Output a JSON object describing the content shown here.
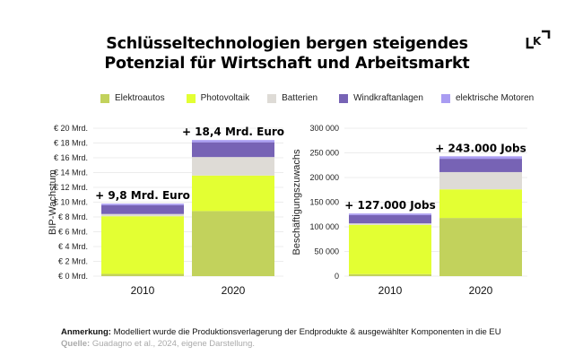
{
  "title_line1": "Schlüsseltechnologien bergen steigendes",
  "title_line2": "Potenzial für Wirtschaft und Arbeitsmarkt",
  "logo": "lk-bracket-logo",
  "legend": [
    {
      "label": "Elektroautos",
      "color": "#c2d25c"
    },
    {
      "label": "Photovoltaik",
      "color": "#e3ff33"
    },
    {
      "label": "Batterien",
      "color": "#dedbd6"
    },
    {
      "label": "Windkraftanlagen",
      "color": "#7763b5"
    },
    {
      "label": "elektrische Motoren",
      "color": "#a99cf2"
    }
  ],
  "note": {
    "label": "Anmerkung:",
    "text": "Modelliert wurde die Produktionsverlagerung der Endprodukte & ausgewählter Komponenten in die EU",
    "source_label": "Quelle:",
    "source_text": "Guadagno et al., 2024, eigene Darstellung."
  },
  "chart_data": [
    {
      "type": "bar",
      "stacked": true,
      "title": "",
      "xlabel": "",
      "ylabel": "BIP-Wachstum",
      "categories": [
        "2010",
        "2020"
      ],
      "ylim": [
        0,
        20
      ],
      "yticks": [
        0,
        2,
        4,
        6,
        8,
        10,
        12,
        14,
        16,
        18,
        20
      ],
      "ytick_labels": [
        "€ 0 Mrd.",
        "€ 2 Mrd.",
        "€ 4 Mrd.",
        "€ 6 Mrd.",
        "€ 8 Mrd.",
        "€ 10 Mrd.",
        "€ 12 Mrd.",
        "€ 14 Mrd.",
        "€ 16 Mrd.",
        "€ 18 Mrd.",
        "€ 20 Mrd."
      ],
      "grid": true,
      "legend": "top",
      "series": [
        {
          "name": "Elektroautos",
          "values": [
            0.3,
            8.8
          ]
        },
        {
          "name": "Photovoltaik",
          "values": [
            7.8,
            4.8
          ]
        },
        {
          "name": "Batterien",
          "values": [
            0.3,
            2.5
          ]
        },
        {
          "name": "Windkraftanlagen",
          "values": [
            1.2,
            2.0
          ]
        },
        {
          "name": "elektrische Motoren",
          "values": [
            0.2,
            0.3
          ]
        }
      ],
      "totals": [
        9.8,
        18.4
      ],
      "total_labels": [
        "+ 9,8 Mrd. Euro",
        "+ 18,4 Mrd. Euro"
      ]
    },
    {
      "type": "bar",
      "stacked": true,
      "title": "",
      "xlabel": "",
      "ylabel": "Beschäftigungszuwachs",
      "categories": [
        "2010",
        "2020"
      ],
      "ylim": [
        0,
        300000
      ],
      "yticks": [
        0,
        50000,
        100000,
        150000,
        200000,
        250000,
        300000
      ],
      "ytick_labels": [
        "0",
        "50 000",
        "100 000",
        "150 000",
        "200 000",
        "250 000",
        "300 000"
      ],
      "grid": true,
      "legend": "top",
      "series": [
        {
          "name": "Elektroautos",
          "values": [
            4000,
            118000
          ]
        },
        {
          "name": "Photovoltaik",
          "values": [
            100000,
            58000
          ]
        },
        {
          "name": "Batterien",
          "values": [
            3000,
            35000
          ]
        },
        {
          "name": "Windkraftanlagen",
          "values": [
            17000,
            27000
          ]
        },
        {
          "name": "elektrische Motoren",
          "values": [
            3000,
            5000
          ]
        }
      ],
      "totals": [
        127000,
        243000
      ],
      "total_labels": [
        "+ 127.000 Jobs",
        "+ 243.000 Jobs"
      ]
    }
  ]
}
